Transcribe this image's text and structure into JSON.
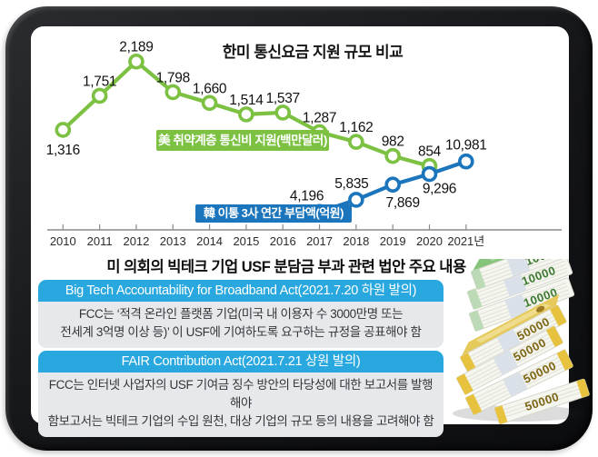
{
  "chart_data": {
    "type": "line",
    "title": "한미 통신요금 지원 규모 비교",
    "x_categories": [
      "2010",
      "2011",
      "2012",
      "2013",
      "2014",
      "2015",
      "2016",
      "2017",
      "2018",
      "2019",
      "2020",
      "2021년"
    ],
    "series": [
      {
        "name": "美 취약계층 통신비 지원(백만달러)",
        "color": "#7cc142",
        "x_start_index": 0,
        "values": [
          1316,
          1751,
          2189,
          1798,
          1660,
          1514,
          1537,
          1287,
          1162,
          982,
          854
        ]
      },
      {
        "name": "韓 이통 3사 연간 부담액(억원)",
        "color": "#1b75bc",
        "x_start_index": 7,
        "values": [
          4196,
          5835,
          7869,
          9296,
          10981
        ]
      }
    ],
    "legend": "inline-boxes-on-plot",
    "grid": false,
    "axis": "x-only"
  },
  "section": {
    "title": "미 의회의 빅테크 기업 USF 분담금 부과 관련 법안 주요 내용",
    "cards": [
      {
        "header": "Big Tech Accountability for Broadband Act(2021.7.20 하원 발의)",
        "body_lines": [
          "FCC는 ‘적격 온라인 플랫폼 기업(미국 내 이용자 수 3000만명 또는",
          "전세계 3억명 이상 등)’ 이 USF에 기여하도록 요구하는 규정을 공표해야 함"
        ]
      },
      {
        "header": "FAIR Contribution Act(2021.7.21 상원 발의)",
        "body_lines": [
          "FCC는 인터넷 사업자의 USF 기여금 징수 방안의 타당성에 대한 보고서를 발행해야",
          "함보고서는 빅테크 기업의 수입 원천, 대상 기업의 규모 등의 내용을 고려해야 함"
        ]
      }
    ]
  },
  "money": {
    "label_10000": "10000",
    "label_50000": "50000",
    "color_won10000": "#86c47c",
    "color_won50000": "#e5c95a"
  }
}
